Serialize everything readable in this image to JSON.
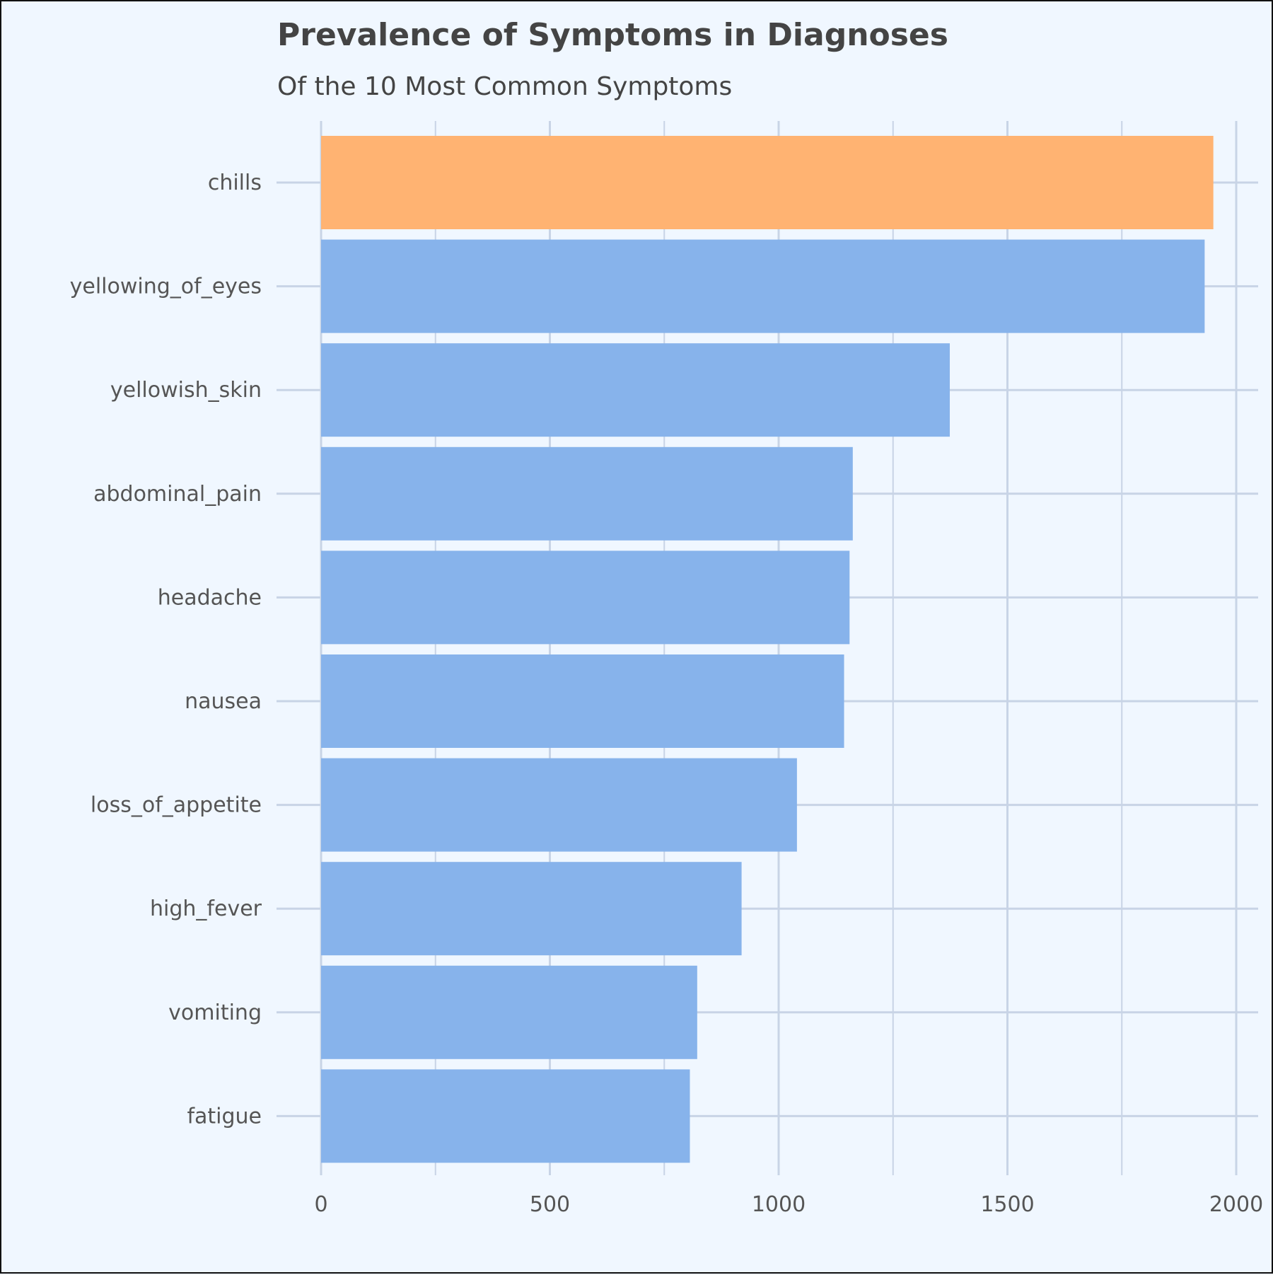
{
  "chart_data": {
    "type": "bar",
    "orientation": "horizontal",
    "title": "Prevalence of Symptoms in Diagnoses",
    "subtitle": "Of the 10 Most Common Symptoms",
    "xlabel": "",
    "ylabel": "",
    "categories": [
      "chills",
      "yellowing_of_eyes",
      "yellowish_skin",
      "abdominal_pain",
      "headache",
      "nausea",
      "loss_of_appetite",
      "high_fever",
      "vomiting",
      "fatigue"
    ],
    "values": [
      1950,
      1931,
      1374,
      1162,
      1155,
      1143,
      1040,
      919,
      822,
      806
    ],
    "highlight_index": 0,
    "xlim": [
      0,
      2000
    ],
    "xticks": [
      0,
      500,
      1000,
      1500,
      2000
    ],
    "xtick_labels": [
      "0",
      "500",
      "1000",
      "1500",
      "2000"
    ],
    "grid": true,
    "colors": {
      "highlight": "#ffb372",
      "default": "#87b3eb",
      "grid": "#c8d4e6",
      "background": "#f0f7ff"
    }
  }
}
